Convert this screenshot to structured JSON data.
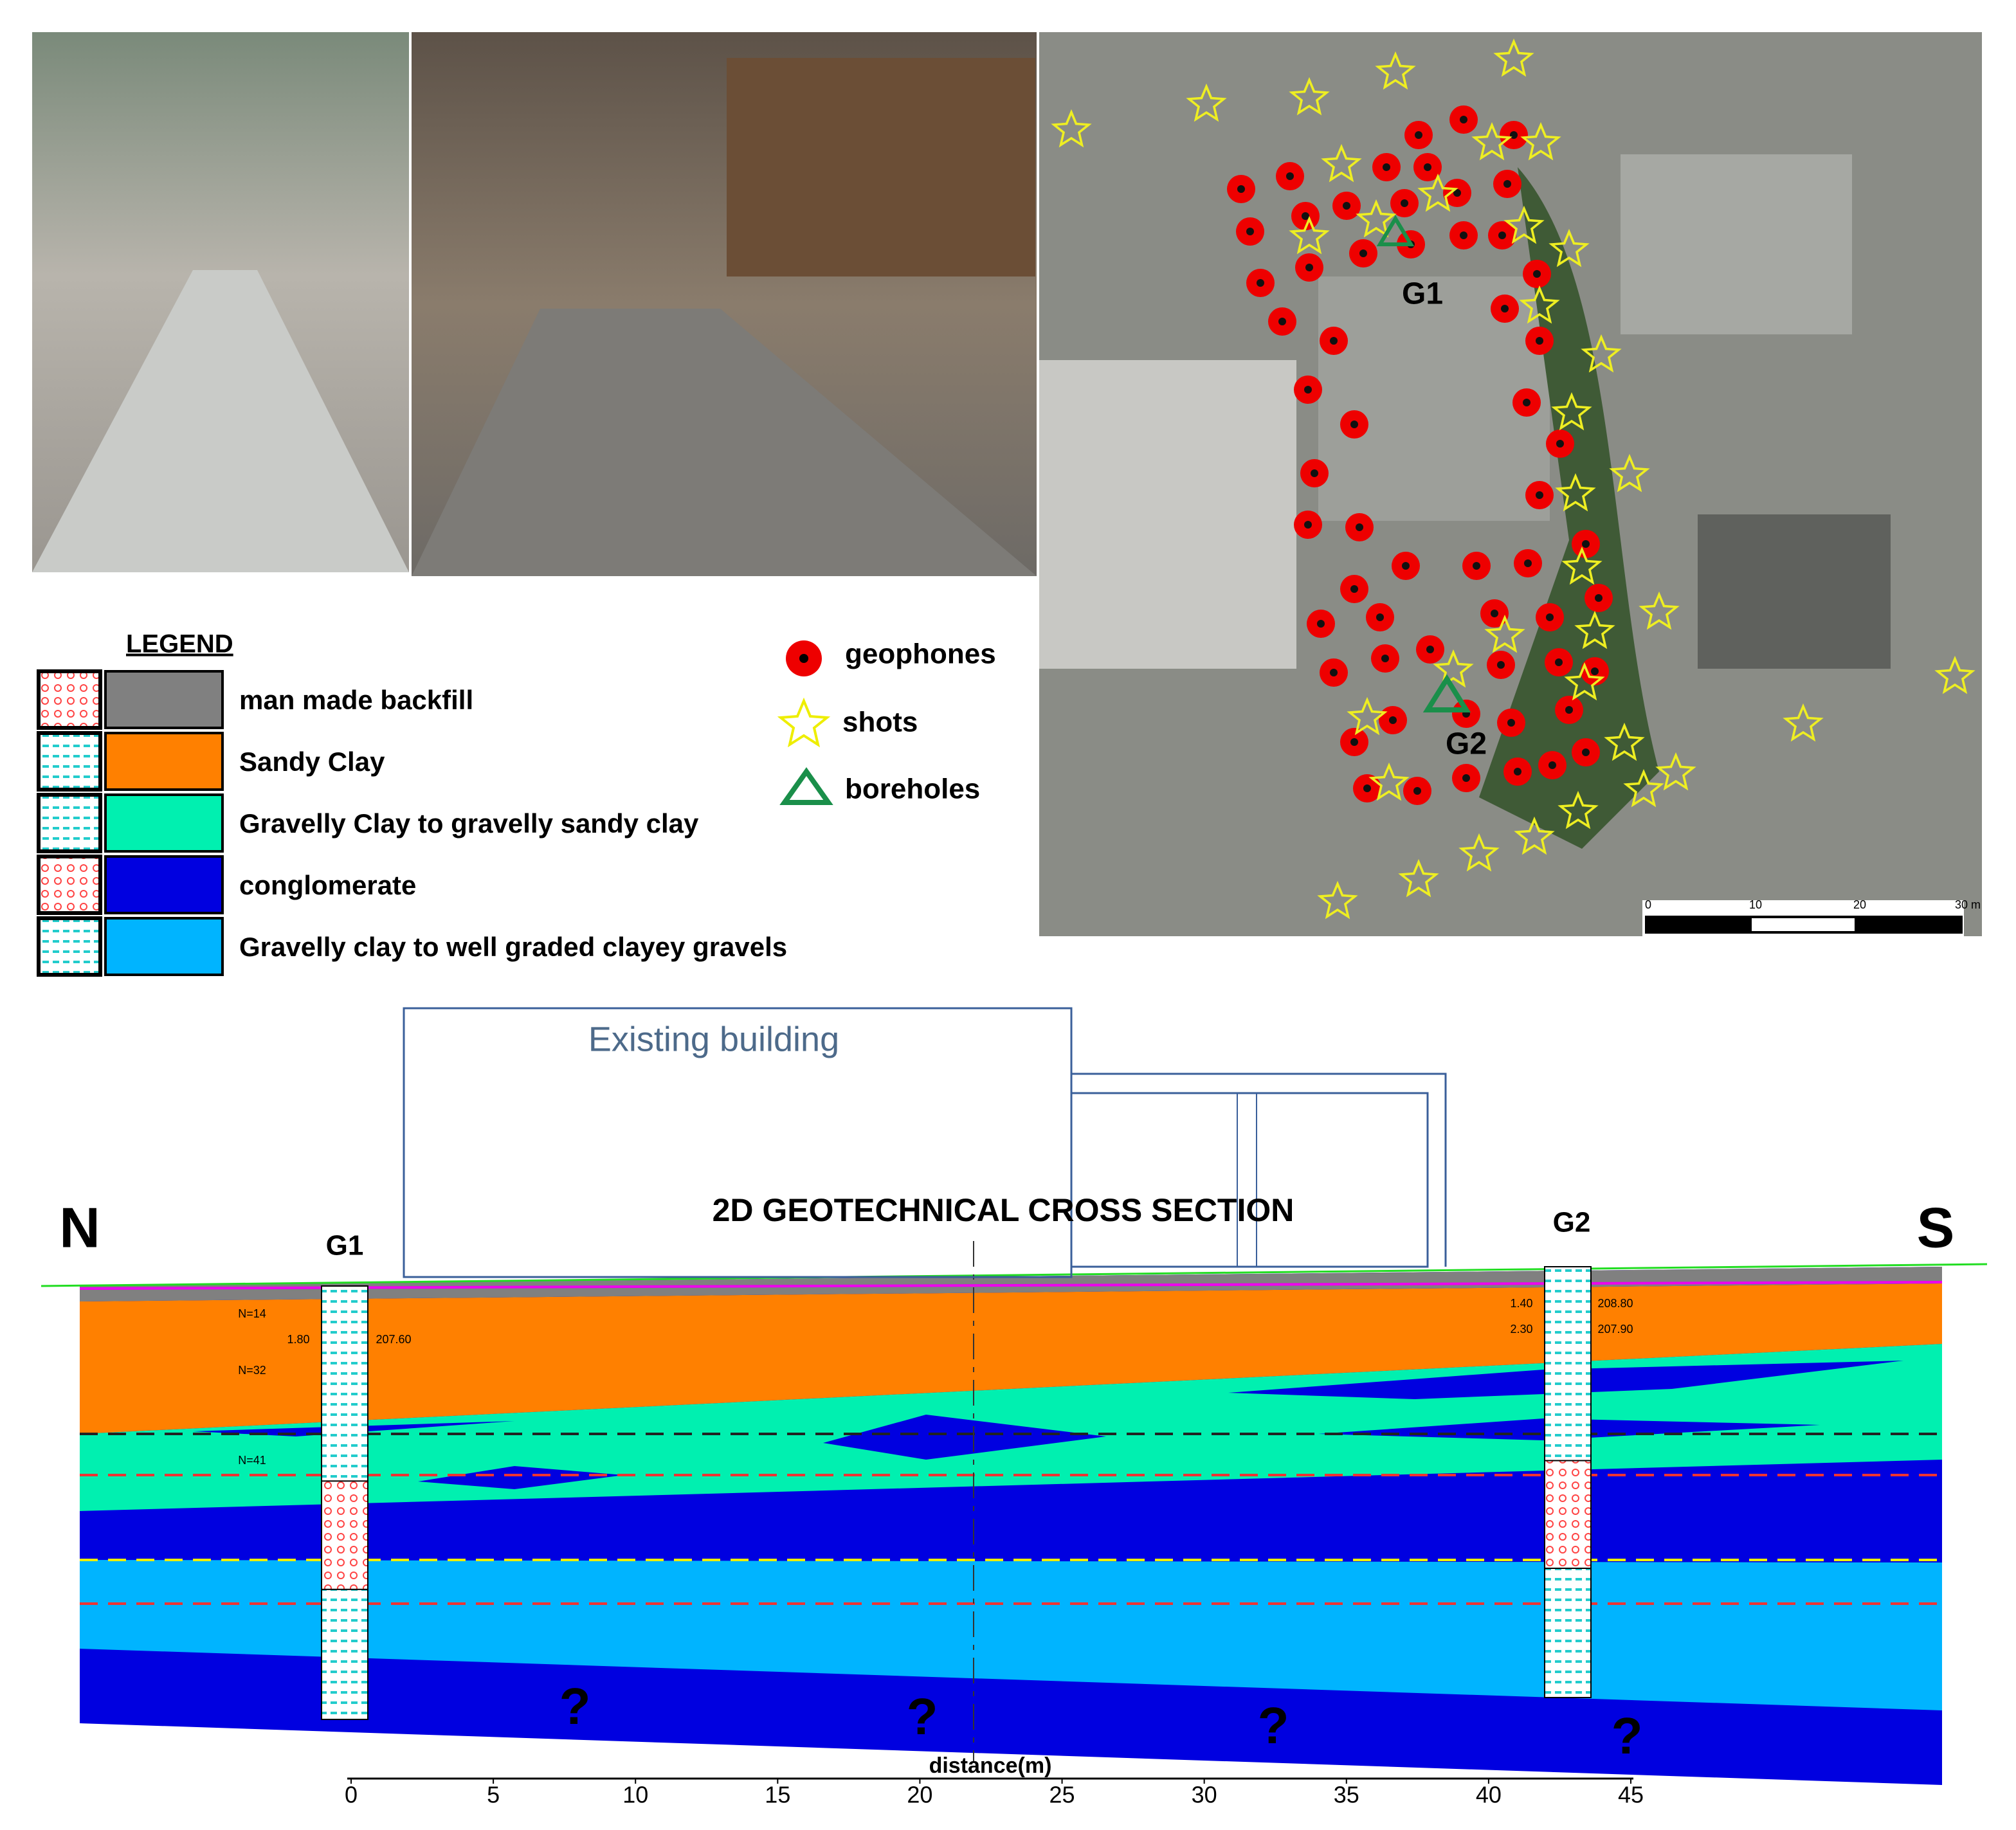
{
  "legend": {
    "title": "LEGEND",
    "items": [
      {
        "label": "man made backfill",
        "color": "#808080"
      },
      {
        "label": "Sandy Clay",
        "color": "#ff8000"
      },
      {
        "label": "Gravelly Clay to gravelly sandy clay",
        "color": "#00f0b0"
      },
      {
        "label": "conglomerate",
        "color": "#0000e0"
      },
      {
        "label": "Gravelly clay to well graded clayey gravels",
        "color": "#00b4ff"
      }
    ]
  },
  "map_legend": {
    "geophones": "geophones",
    "shots": "shots",
    "boreholes": "boreholes"
  },
  "map": {
    "boreholes": [
      "G1",
      "G2"
    ],
    "scale_labels": [
      "0",
      "10",
      "20",
      "30 m"
    ]
  },
  "section": {
    "title": "2D GEOTECHNICAL CROSS SECTION",
    "north": "N",
    "south": "S",
    "building": "Existing building",
    "boreholes": [
      "G1",
      "G2"
    ],
    "unknown": [
      "?",
      "?",
      "?",
      "?"
    ],
    "axis_label": "distance(m)",
    "ticks": [
      0,
      5,
      10,
      15,
      20,
      25,
      30,
      35,
      40,
      45
    ],
    "annotations": [
      "N=14",
      "N=32",
      "N=41",
      "1.80",
      "207.60",
      "1.40",
      "208.80",
      "2.30",
      "207.90"
    ]
  }
}
